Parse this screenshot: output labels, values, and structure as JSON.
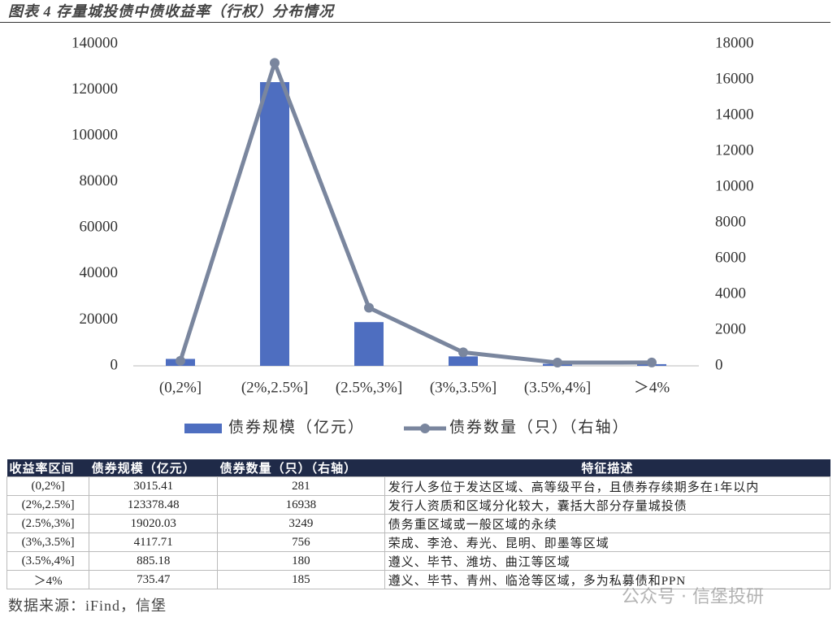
{
  "title": "图表 4 存量城投债中债收益率（行权）分布情况",
  "chart_data": {
    "type": "bar-line",
    "categories": [
      "(0,2%]",
      "(2%,2.5%]",
      "(2.5%,3%]",
      "(3%,3.5%]",
      "(3.5%,4%]",
      "＞4%"
    ],
    "series": [
      {
        "name": "债券规模（亿元）",
        "type": "bar",
        "color": "#4e6ec0",
        "values": [
          3015.41,
          123378.48,
          19020.03,
          4117.71,
          885.18,
          735.47
        ]
      },
      {
        "name": "债券数量（只）（右轴）",
        "type": "line",
        "axis": "y2",
        "color": "#7a869e",
        "values": [
          281,
          16938,
          3249,
          756,
          180,
          185
        ]
      }
    ],
    "ylim": [
      0,
      140000
    ],
    "yticks": [
      0,
      20000,
      40000,
      60000,
      80000,
      100000,
      120000,
      140000
    ],
    "y2lim": [
      0,
      18000
    ],
    "y2ticks": [
      0,
      2000,
      4000,
      6000,
      8000,
      10000,
      12000,
      14000,
      16000,
      18000
    ],
    "grid": false,
    "legend": "bottom"
  },
  "table": {
    "header": [
      "收益率区间",
      "债券规模（亿元）",
      "债券数量（只）（右轴）",
      "特征描述"
    ],
    "rows": [
      [
        "(0,2%]",
        "3015.41",
        "281",
        "发行人多位于发达区域、高等级平台，且债券存续期多在1年以内"
      ],
      [
        "(2%,2.5%]",
        "123378.48",
        "16938",
        "发行人资质和区域分化较大，囊括大部分存量城投债"
      ],
      [
        "(2.5%,3%]",
        "19020.03",
        "3249",
        "债务重区域或一般区域的永续"
      ],
      [
        "(3%,3.5%]",
        "4117.71",
        "756",
        "荣成、李沧、寿光、昆明、即墨等区域"
      ],
      [
        "(3.5%,4%]",
        "885.18",
        "180",
        "遵义、毕节、潍坊、曲江等区域"
      ],
      [
        "＞4%",
        "735.47",
        "185",
        "遵义、毕节、青州、临沧等区域，多为私募债和PPN"
      ]
    ]
  },
  "source": "数据来源：iFind，信堡",
  "watermark": "公众号 · 信堡投研"
}
